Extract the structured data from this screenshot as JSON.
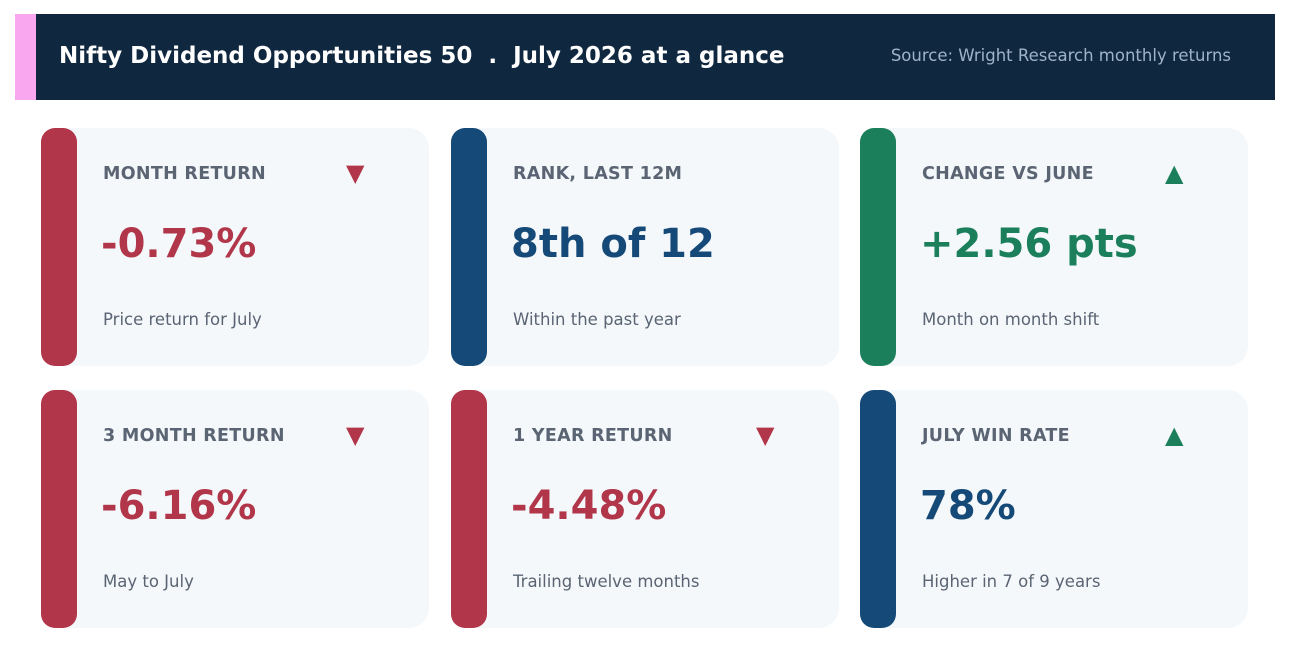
{
  "header": {
    "title": "Nifty Dividend Opportunities 50  .  July 2026 at a glance",
    "source": "Source: Wright Research monthly returns",
    "accent_color": "#f9a8f0",
    "background_color": "#10283f"
  },
  "colors": {
    "negative": "#b1364a",
    "neutral": "#154a78",
    "positive": "#1b7f5b"
  },
  "cards": [
    {
      "label": "MONTH RETURN",
      "value": "-0.73%",
      "sub": "Price return for July",
      "arrow": "▼",
      "tone": "negative",
      "arrow_icon": "down-triangle-icon"
    },
    {
      "label": "RANK, LAST 12M",
      "value": "8th of 12",
      "sub": "Within the past year",
      "arrow": "",
      "tone": "neutral",
      "arrow_icon": ""
    },
    {
      "label": "CHANGE VS JUNE",
      "value": "+2.56 pts",
      "sub": "Month on month shift",
      "arrow": "▲",
      "tone": "positive",
      "arrow_icon": "up-triangle-icon"
    },
    {
      "label": "3 MONTH RETURN",
      "value": "-6.16%",
      "sub": "May to July",
      "arrow": "▼",
      "tone": "negative",
      "arrow_icon": "down-triangle-icon"
    },
    {
      "label": "1 YEAR RETURN",
      "value": "-4.48%",
      "sub": "Trailing twelve months",
      "arrow": "▼",
      "tone": "negative",
      "arrow_icon": "down-triangle-icon"
    },
    {
      "label": "JULY WIN RATE",
      "value": "78%",
      "sub": "Higher in 7 of 9 years",
      "arrow": "▲",
      "tone": "neutral",
      "arrow_color_tone": "positive",
      "arrow_icon": "up-triangle-icon"
    }
  ]
}
